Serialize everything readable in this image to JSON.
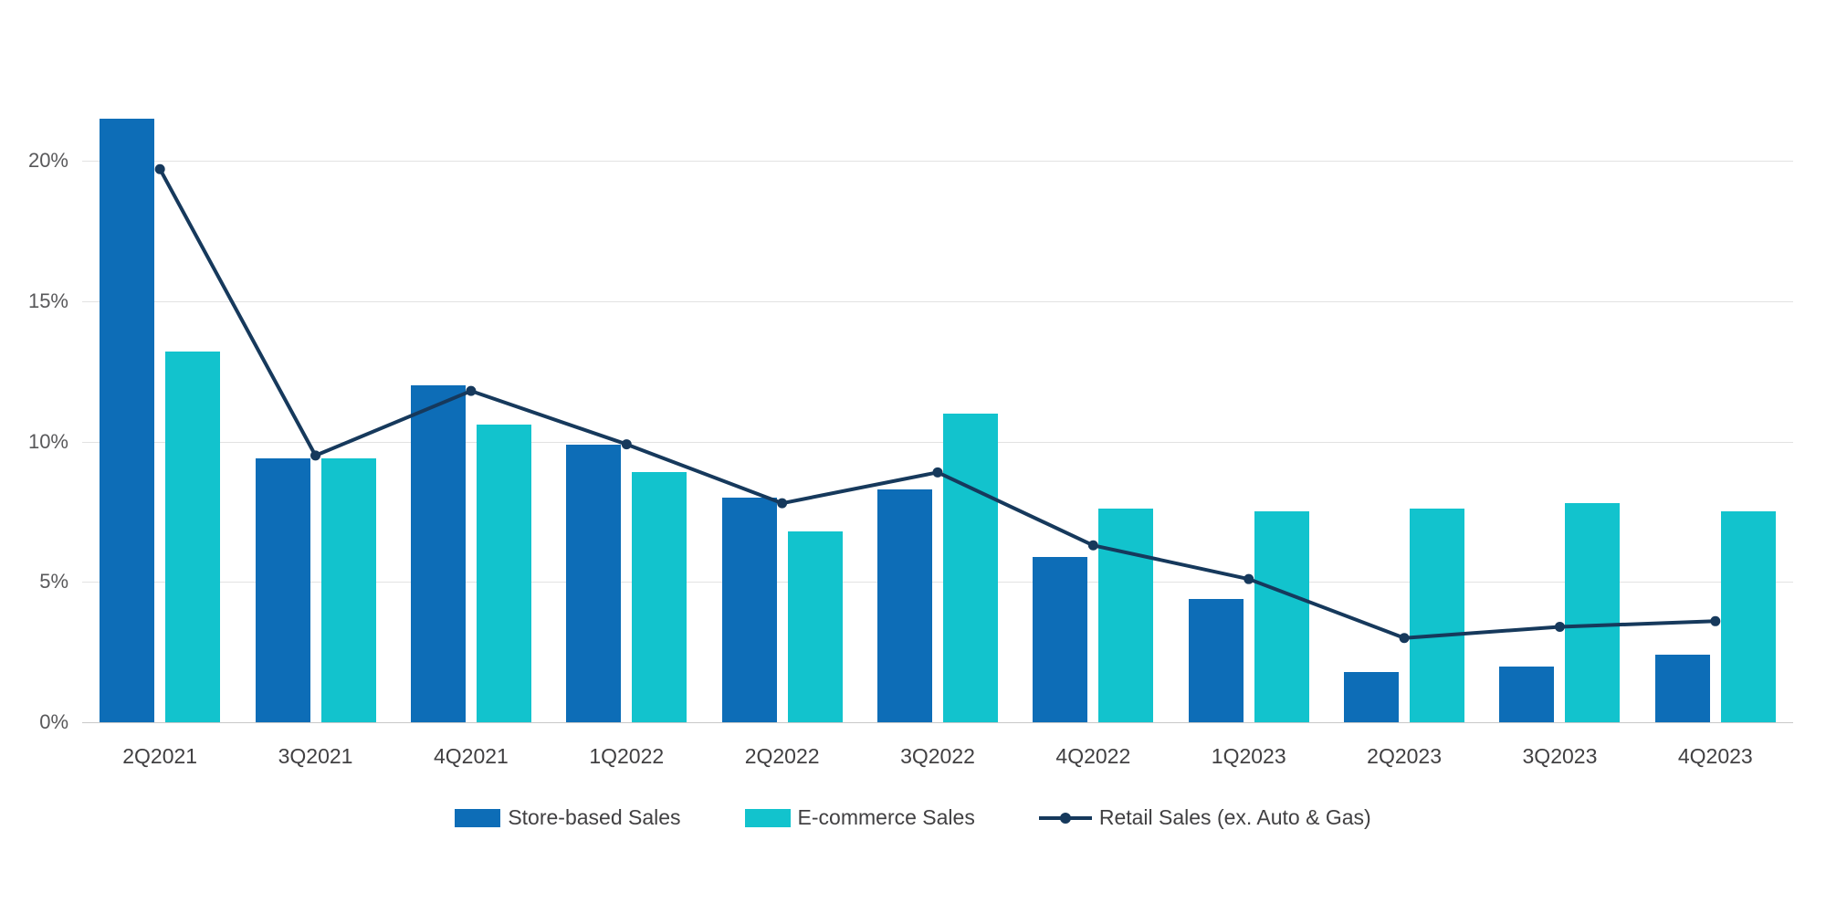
{
  "chart_data": {
    "type": "bar",
    "title": "",
    "xlabel": "",
    "ylabel": "",
    "ylim": [
      0,
      22
    ],
    "yticks": [
      0,
      5,
      10,
      15,
      20
    ],
    "ytick_labels": [
      "0%",
      "5%",
      "10%",
      "15%",
      "20%"
    ],
    "grid": true,
    "legend_position": "bottom",
    "categories": [
      "2Q2021",
      "3Q2021",
      "4Q2021",
      "1Q2022",
      "2Q2022",
      "3Q2022",
      "4Q2022",
      "1Q2023",
      "2Q2023",
      "3Q2023",
      "4Q2023"
    ],
    "series": [
      {
        "name": "Store-based Sales",
        "type": "bar",
        "color": "#0d6db7",
        "values": [
          21.5,
          9.4,
          12.0,
          9.9,
          8.0,
          8.3,
          5.9,
          4.4,
          1.8,
          2.0,
          2.4
        ]
      },
      {
        "name": "E-commerce Sales",
        "type": "bar",
        "color": "#12c3cd",
        "values": [
          13.2,
          9.4,
          10.6,
          8.9,
          6.8,
          11.0,
          7.6,
          7.5,
          7.6,
          7.8,
          7.5
        ]
      },
      {
        "name": "Retail Sales (ex. Auto & Gas)",
        "type": "line",
        "color": "#16395c",
        "values": [
          19.7,
          9.5,
          11.8,
          9.9,
          7.8,
          8.9,
          6.3,
          5.1,
          3.0,
          3.4,
          3.6
        ]
      }
    ]
  }
}
